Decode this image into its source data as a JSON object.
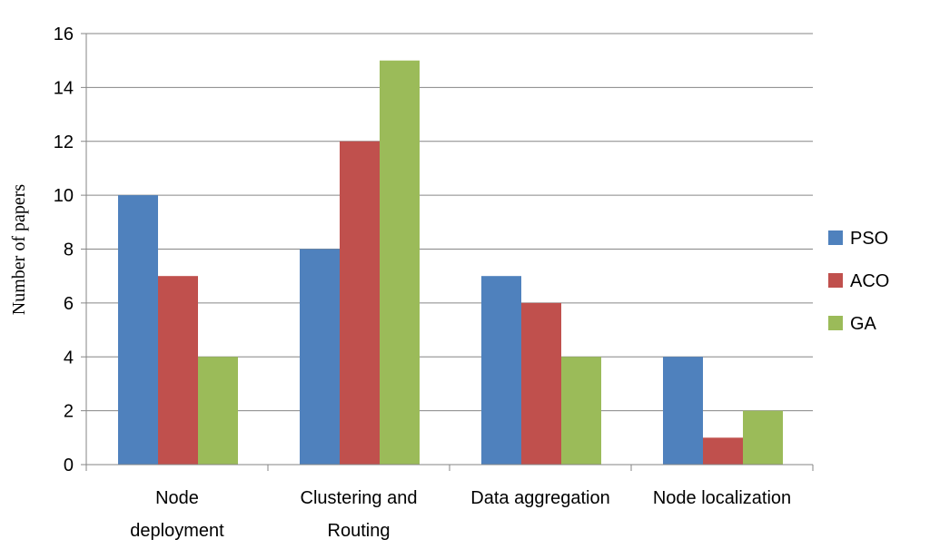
{
  "chart_data": {
    "type": "bar",
    "categories": [
      [
        "Node",
        "deployment"
      ],
      [
        "Clustering and",
        "Routing"
      ],
      [
        "Data aggregation"
      ],
      [
        "Node localization"
      ]
    ],
    "series": [
      {
        "name": "PSO",
        "values": [
          10,
          8,
          7,
          4
        ],
        "color": "#4F81BD"
      },
      {
        "name": "ACO",
        "values": [
          7,
          12,
          6,
          1
        ],
        "color": "#C0504D"
      },
      {
        "name": "GA",
        "values": [
          4,
          15,
          4,
          2
        ],
        "color": "#9BBB59"
      }
    ],
    "title": "",
    "xlabel": "",
    "ylabel": "Number of papers",
    "ylim": [
      0,
      16
    ],
    "yticks": [
      0,
      2,
      4,
      6,
      8,
      10,
      12,
      14,
      16
    ],
    "grid": true,
    "legend_position": "right"
  }
}
